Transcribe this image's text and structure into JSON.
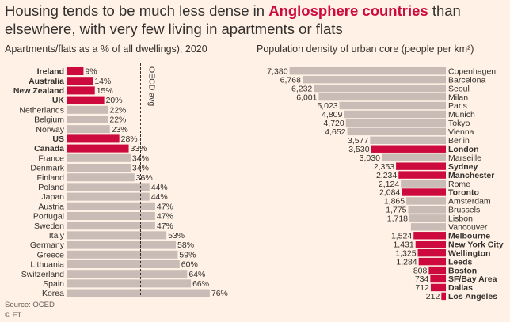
{
  "title": {
    "part1": "Housing tends to be much less dense in ",
    "highlight": "Anglosphere countries",
    "part2": " than elsewhere, with very few living in apartments or flats"
  },
  "source": "Source: OCED",
  "credit": "© FT",
  "colors": {
    "highlight": "#cc0a3e",
    "bar": "#c9bbb5",
    "background": "#fff1e5",
    "text": "#33302e"
  },
  "chart_data": [
    {
      "type": "bar",
      "orientation": "horizontal",
      "title": "Apartments/flats as a % of all dwellings), 2020",
      "value_suffix": "%",
      "reference_line": {
        "label": "OECD avg"
      },
      "categories": [
        "Ireland",
        "Australia",
        "New Zealand",
        "UK",
        "Netherlands",
        "Belgium",
        "Norway",
        "US",
        "Canada",
        "France",
        "Denmark",
        "Finland",
        "Poland",
        "Japan",
        "Austria",
        "Portugal",
        "Sweden",
        "Italy",
        "Germany",
        "Greece",
        "Lithuania",
        "Switzerland",
        "Spain",
        "Korea"
      ],
      "values": [
        9,
        14,
        15,
        20,
        22,
        22,
        23,
        28,
        33,
        34,
        34,
        36,
        44,
        44,
        47,
        47,
        47,
        53,
        58,
        59,
        60,
        64,
        66,
        76
      ],
      "highlighted": [
        "Ireland",
        "Australia",
        "New Zealand",
        "UK",
        "US",
        "Canada"
      ]
    },
    {
      "type": "bar",
      "orientation": "horizontal",
      "title": "Population density of urban core (people per km²)",
      "categories": [
        "Copenhagen",
        "Barcelona",
        "Seoul",
        "Milan",
        "Paris",
        "Munich",
        "Tokyo",
        "Vienna",
        "Berlin",
        "London",
        "Marseille",
        "Sydney",
        "Manchester",
        "Rome",
        "Toronto",
        "Amsterdam",
        "Brussels",
        "Lisbon",
        "Vancouver",
        "Melbourne",
        "New York City",
        "Wellington",
        "Leeds",
        "Boston",
        "SF/Bay Area",
        "Dallas",
        "Los Angeles"
      ],
      "values": [
        7380,
        6768,
        6232,
        6001,
        5023,
        4809,
        4720,
        4652,
        3577,
        3530,
        3030,
        2353,
        2234,
        2124,
        2084,
        1865,
        1775,
        1718,
        1650,
        1524,
        1431,
        1325,
        1284,
        808,
        734,
        712,
        212
      ],
      "labels": [
        "7,380",
        "6,768",
        "6,232",
        "6,001",
        "5,023",
        "4,809",
        "4,720",
        "4,652",
        "3,577",
        "3,530",
        "3,030",
        "2,353",
        "2,234",
        "2,124",
        "2,084",
        "1,865",
        "1,775",
        "1,718",
        "",
        "1,524",
        "1,431",
        "1,325",
        "1,284",
        "808",
        "734",
        "712",
        "212"
      ],
      "highlighted": [
        "London",
        "Sydney",
        "Manchester",
        "Toronto",
        "Melbourne",
        "New York City",
        "Wellington",
        "Leeds",
        "Boston",
        "SF/Bay Area",
        "Dallas",
        "Los Angeles"
      ]
    }
  ]
}
